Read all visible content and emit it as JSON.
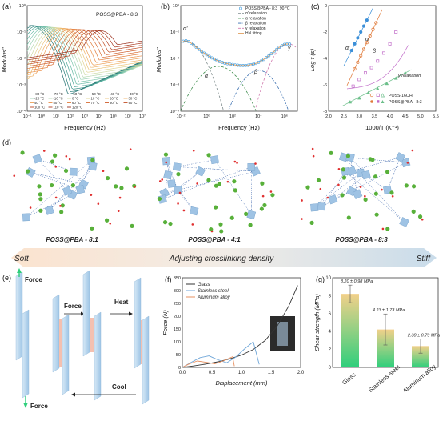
{
  "chart_data": [
    {
      "id": "a",
      "type": "line",
      "panel_label": "(a)",
      "title": "POSS@PBA - 8:3",
      "xlabel": "Frequency (Hz)",
      "ylabel": "Modulus''",
      "xscale": "log",
      "yscale": "log",
      "xlim": [
        0.1,
        10000000
      ],
      "ylim": [
        0.0001,
        1
      ],
      "xticks": [
        "10⁻¹",
        "10⁰",
        "10¹",
        "10²",
        "10³",
        "10⁴",
        "10⁵",
        "10⁶",
        "10⁷"
      ],
      "yticks": [
        "10⁻⁴",
        "10⁻³",
        "10⁻²",
        "10⁻¹",
        "10⁰"
      ],
      "legend_position": "bottom-left",
      "legend": [
        "-80 °C",
        "-70 °C",
        "-60 °C",
        "-50 °C",
        "-40 °C",
        "-30 °C",
        "-20 °C",
        "-10 °C",
        "0 °C",
        "10 °C",
        "20 °C",
        "30 °C",
        "40 °C",
        "50 °C",
        "60 °C",
        "70 °C",
        "80 °C",
        "90 °C",
        "100 °C",
        "110 °C",
        "120 °C"
      ],
      "colors": [
        "#1a6b6b",
        "#2a7e7a",
        "#3b9289",
        "#4ea697",
        "#64b8a4",
        "#7ec6ae",
        "#9ad1b3",
        "#b6d9b1",
        "#cfdca6",
        "#e2d492",
        "#ecc57c",
        "#efb368",
        "#eea157",
        "#ea8f49",
        "#e27d3c",
        "#d96c33",
        "#ce5d2c",
        "#c25028",
        "#b54424",
        "#a93a21",
        "#9c311e"
      ],
      "peak_log_freq": [
        -0.7,
        -0.5,
        -0.3,
        -0.1,
        0.1,
        0.3,
        0.5,
        0.7,
        0.9,
        1.1,
        1.3,
        1.5,
        1.7,
        2.0,
        2.3,
        2.6,
        2.9,
        3.2,
        3.5,
        3.8,
        4.1
      ]
    },
    {
      "id": "b",
      "type": "scatter",
      "panel_label": "(b)",
      "xlabel": "Frequency (Hz)",
      "ylabel": "Modulus''",
      "xscale": "log",
      "yscale": "log",
      "xlim": [
        0.01,
        10000000
      ],
      "ylim": [
        0.0001,
        1
      ],
      "xticks": [
        "10⁻²",
        "10⁰",
        "10²",
        "10⁴",
        "10⁶"
      ],
      "yticks": [
        "10⁻⁴",
        "10⁻³",
        "10⁻²",
        "10⁻¹",
        "10⁰"
      ],
      "legend_position": "top-right",
      "series": [
        {
          "name": "POSS@PBA - 8:3_90 °C",
          "color": "#3b9be0",
          "marker": "circle-open"
        },
        {
          "name": "α' relaxation",
          "color": "#7f8c8d",
          "dash": "3,2"
        },
        {
          "name": "α relaxation",
          "color": "#3a8a4a",
          "dash": "3,2"
        },
        {
          "name": "β relaxation",
          "color": "#3a6fb0",
          "dash": "3,1.5,1,1.5"
        },
        {
          "name": "γ relaxation",
          "color": "#d27cb0",
          "dash": "3,2"
        },
        {
          "name": "HN fitting",
          "color": "#e0a060"
        }
      ],
      "annotations": [
        "α'",
        "α",
        "β",
        "γ"
      ],
      "log_x": [
        -1.8,
        -1.6,
        -1.4,
        -1.2,
        -1.0,
        -0.8,
        -0.6,
        -0.4,
        -0.2,
        0.0,
        0.2,
        0.4,
        0.6,
        0.8,
        1.0,
        1.2,
        1.4,
        1.6,
        1.8,
        2.0,
        2.2,
        2.4,
        2.6,
        2.8,
        3.0,
        3.2,
        3.4,
        3.6,
        3.8,
        4.0,
        4.2,
        4.4,
        4.6,
        4.8,
        5.0,
        5.2,
        5.4,
        5.6,
        5.8,
        6.0,
        6.2,
        6.4
      ],
      "log_y": [
        -1.35,
        -1.33,
        -1.36,
        -1.42,
        -1.5,
        -1.58,
        -1.66,
        -1.73,
        -1.8,
        -1.86,
        -1.92,
        -1.98,
        -2.03,
        -2.08,
        -2.12,
        -2.15,
        -2.18,
        -2.2,
        -2.22,
        -2.23,
        -2.25,
        -2.26,
        -2.27,
        -2.27,
        -2.27,
        -2.26,
        -2.24,
        -2.22,
        -2.19,
        -2.15,
        -2.1,
        -2.04,
        -1.97,
        -1.9,
        -1.82,
        -1.74,
        -1.66,
        -1.58,
        -1.52,
        -1.47,
        -1.45,
        -1.46
      ]
    },
    {
      "id": "c",
      "type": "scatter",
      "panel_label": "(c)",
      "xlabel": "1000/T (K⁻¹)",
      "ylabel": "Log τ (s)",
      "xlim": [
        2.0,
        5.5
      ],
      "ylim": [
        -8,
        0
      ],
      "xticks": [
        "2.0",
        "2.5",
        "3.0",
        "3.5",
        "4.0",
        "4.5",
        "5.0",
        "5.5"
      ],
      "yticks": [
        "0",
        "-2",
        "-4",
        "-6",
        "-8"
      ],
      "legend_position": "bottom-right",
      "legend": [
        "POSS-16OH",
        "POSS@PBA - 8:3"
      ],
      "annotations": [
        "α'",
        "α",
        "β",
        "γ relaxation"
      ],
      "series": [
        {
          "name": "α'",
          "color": "#3b8fd8",
          "x": [
            2.75,
            2.85,
            2.95,
            3.05,
            3.15,
            3.25
          ],
          "y": [
            -3.4,
            -2.9,
            -2.45,
            -2.0,
            -1.55,
            -1.1
          ]
        },
        {
          "name": "α",
          "color": "#e07a3a",
          "x": [
            2.85,
            2.95,
            3.05,
            3.15,
            3.25,
            3.35,
            3.45,
            3.55
          ],
          "y": [
            -4.8,
            -4.3,
            -3.8,
            -3.3,
            -2.8,
            -2.3,
            -1.8,
            -1.3
          ]
        },
        {
          "name": "β",
          "color": "#c06ac8",
          "x": [
            2.8,
            3.0,
            3.2,
            3.4,
            3.6,
            3.8,
            4.0,
            4.2
          ],
          "y": [
            -6.1,
            -5.6,
            -5.1,
            -4.7,
            -4.2,
            -3.6,
            -2.9,
            -2.0
          ]
        },
        {
          "name": "γ relaxation",
          "color": "#6cbf8a",
          "x": [
            2.7,
            3.0,
            3.3,
            3.6,
            3.9,
            4.2,
            4.5
          ],
          "y": [
            -7.3,
            -7.0,
            -6.6,
            -6.3,
            -5.9,
            -5.5,
            -5.1
          ]
        }
      ]
    },
    {
      "id": "f",
      "type": "line",
      "panel_label": "(f)",
      "xlabel": "Displacement (mm)",
      "ylabel": "Force (N)",
      "xlim": [
        0.0,
        2.0
      ],
      "ylim": [
        0,
        350
      ],
      "xticks": [
        "0.0",
        "0.5",
        "1.0",
        "1.5",
        "2.0"
      ],
      "yticks": [
        "0",
        "50",
        "100",
        "150",
        "200",
        "250",
        "300",
        "350"
      ],
      "legend_position": "top-left",
      "series": [
        {
          "name": "Glass",
          "color": "#333333",
          "x": [
            0,
            0.2,
            0.4,
            0.6,
            0.8,
            1.0,
            1.2,
            1.4,
            1.6,
            1.8,
            1.95
          ],
          "y": [
            0,
            6,
            13,
            22,
            33,
            48,
            70,
            105,
            160,
            240,
            320
          ]
        },
        {
          "name": "Stainless steel",
          "color": "#6fa6d8",
          "x": [
            0,
            0.15,
            0.3,
            0.45,
            0.6,
            0.75,
            0.9,
            1.05,
            1.2,
            1.3
          ],
          "y": [
            0,
            20,
            38,
            45,
            30,
            18,
            40,
            72,
            100,
            12
          ]
        },
        {
          "name": "Aluminum alloy",
          "color": "#e79060",
          "x": [
            0,
            0.1,
            0.25,
            0.4,
            0.55,
            0.7,
            0.85,
            0.88
          ],
          "y": [
            0,
            12,
            25,
            20,
            14,
            26,
            42,
            5
          ]
        }
      ]
    },
    {
      "id": "g",
      "type": "bar",
      "panel_label": "(g)",
      "ylabel": "Shear strength (MPa)",
      "ylim": [
        0,
        10
      ],
      "yticks": [
        "0",
        "2",
        "4",
        "6",
        "8",
        "10"
      ],
      "categories": [
        "Glass",
        "Stainless steel",
        "Aluminum alloy"
      ],
      "values": [
        8.2,
        4.23,
        2.38
      ],
      "errors": [
        0.98,
        1.73,
        0.79
      ],
      "data_labels": [
        "8.20 ± 0.98 MPa",
        "4.23 ± 1.73 MPa",
        "2.38 ± 0.79 MPa"
      ]
    }
  ],
  "panel_d": {
    "label": "(d)",
    "networks": [
      "POSS@PBA - 8:1",
      "POSS@PBA - 4:1",
      "POSS@PBA - 8:3"
    ]
  },
  "density_band": {
    "left": "Soft",
    "center": "Adjusting crosslinking density",
    "right": "Stiff"
  },
  "panel_e": {
    "label": "(e)",
    "labels": [
      "Force",
      "Force",
      "Heat",
      "Cool",
      "Force"
    ]
  }
}
